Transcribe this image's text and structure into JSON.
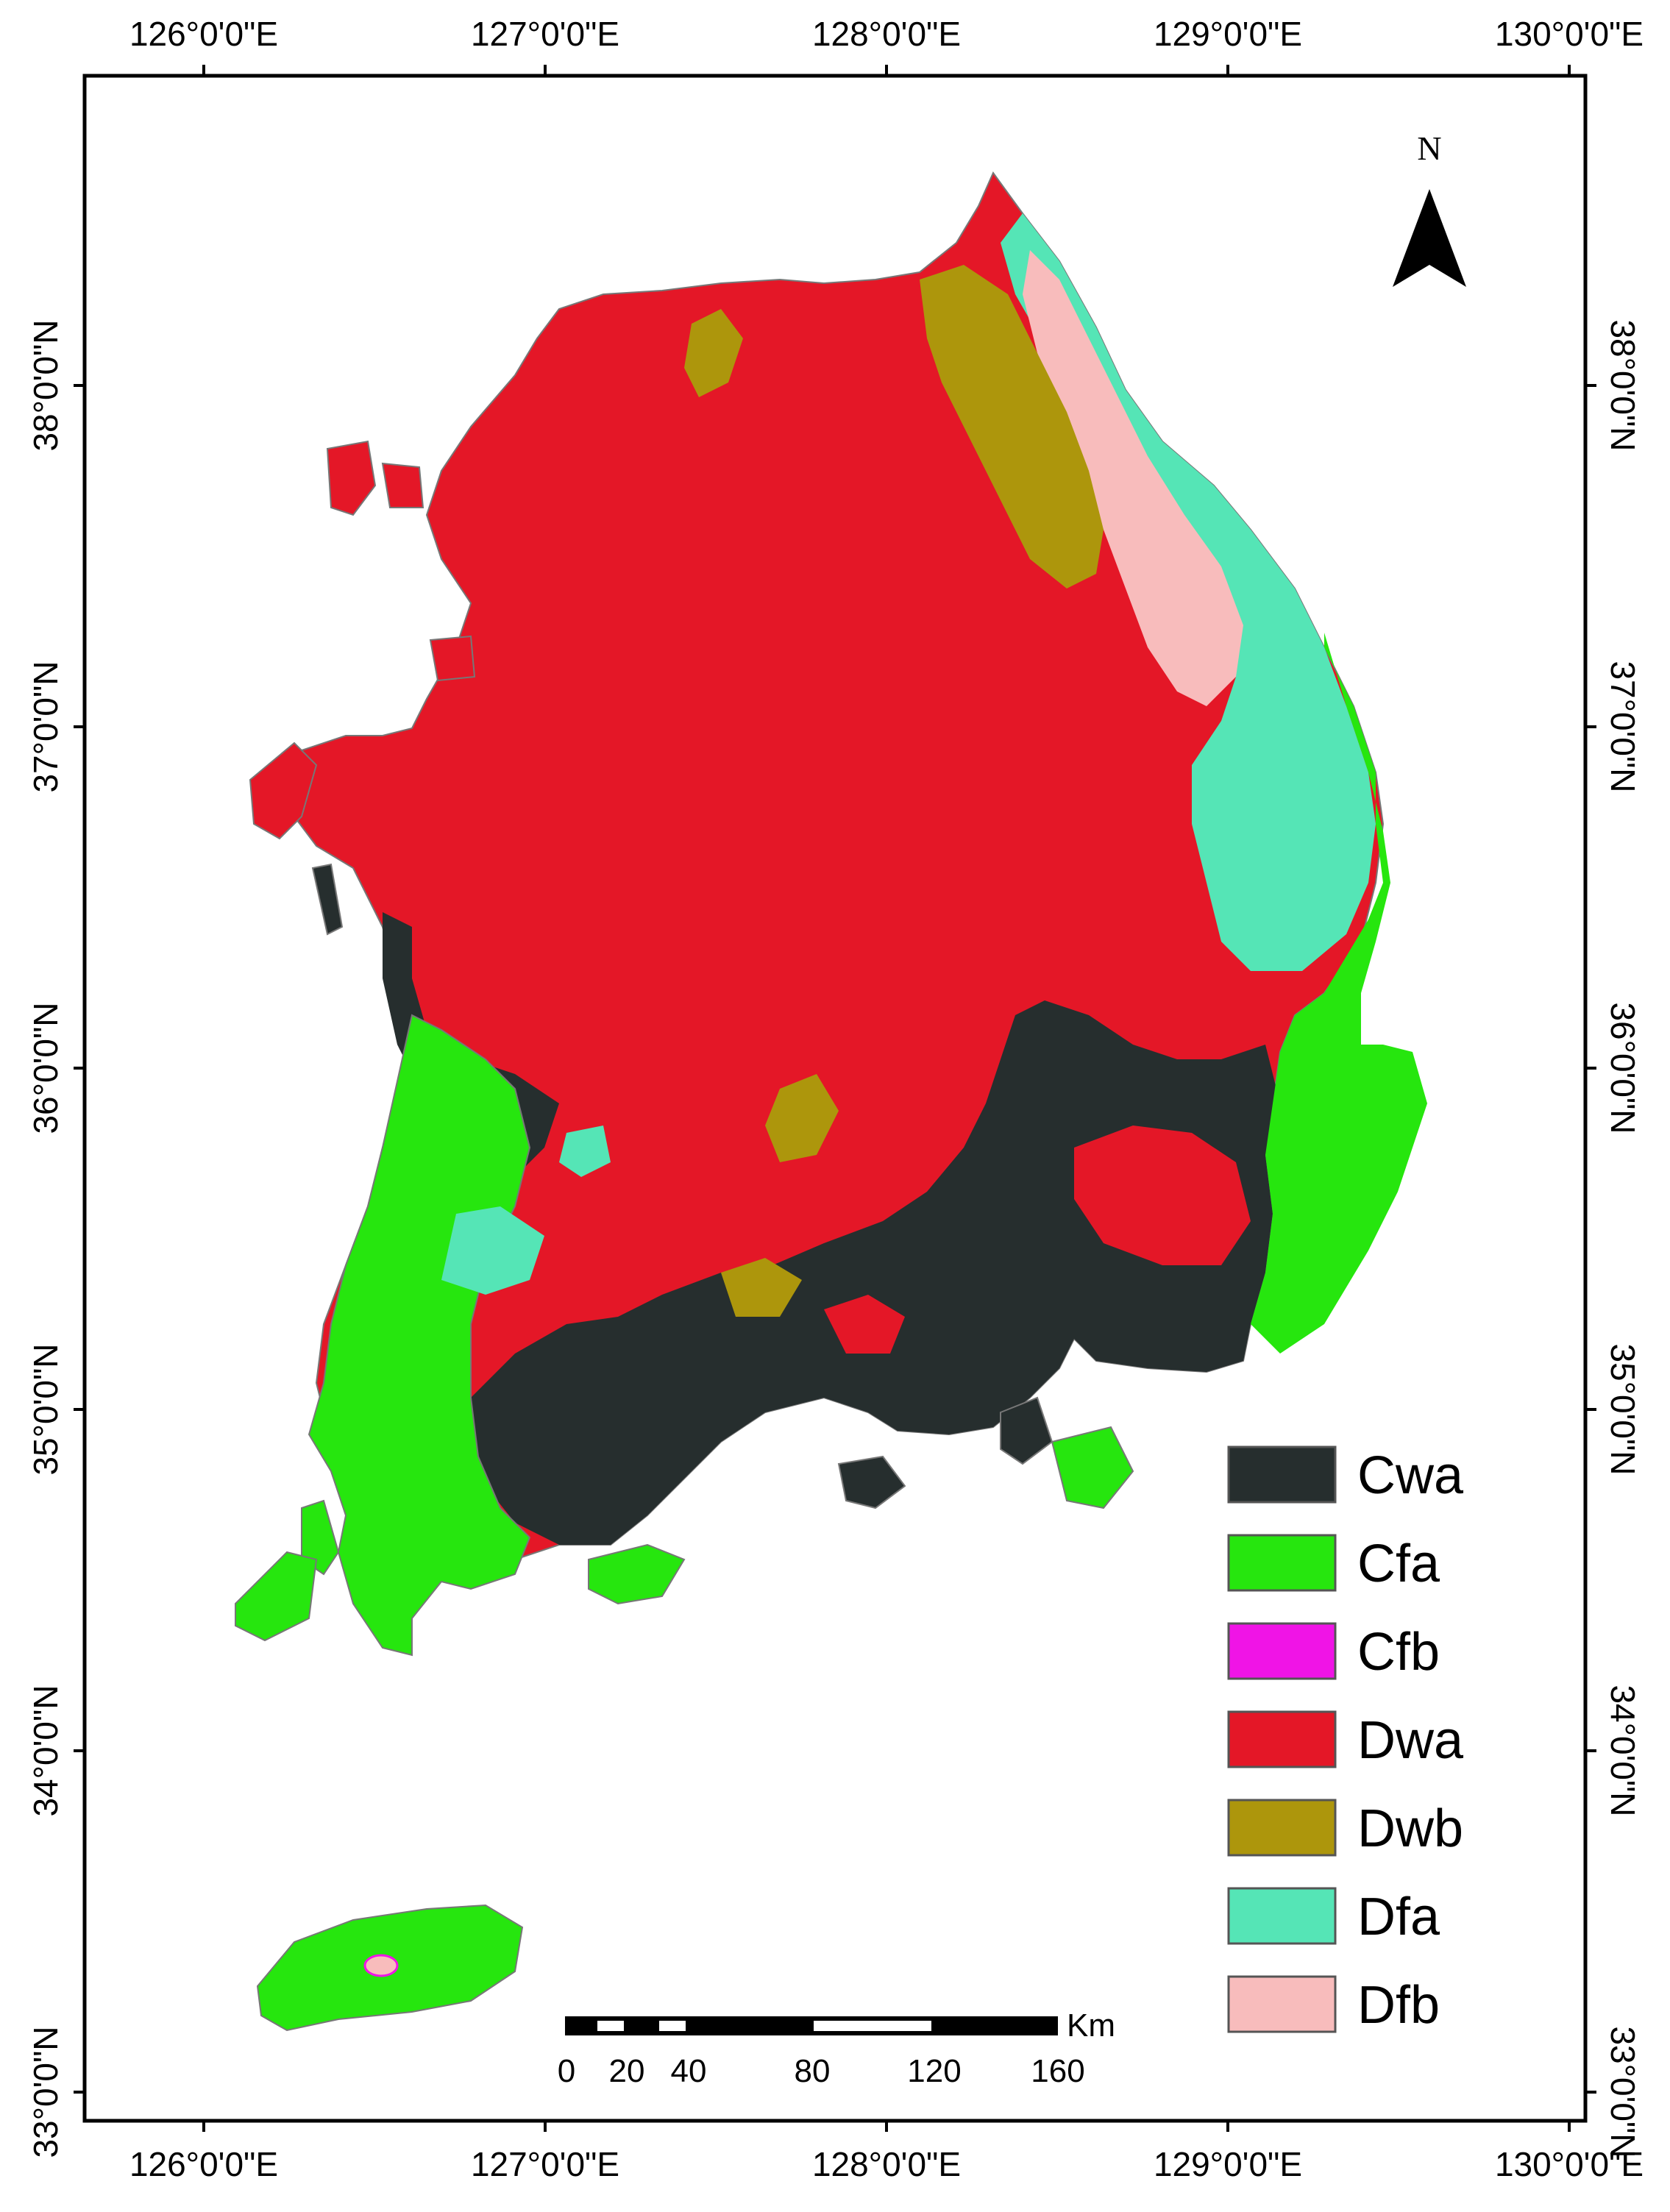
{
  "map": {
    "lon_ticks": [
      "126°0'0\"E",
      "127°0'0\"E",
      "128°0'0\"E",
      "129°0'0\"E",
      "130°0'0\"E"
    ],
    "lat_ticks": [
      "38°0'0\"N",
      "37°0'0\"N",
      "36°0'0\"N",
      "35°0'0\"N",
      "34°0'0\"N",
      "33°0'0\"N"
    ],
    "north_arrow": {
      "label": "N",
      "icon": "north-arrow-icon"
    },
    "scale_bar": {
      "unit": "Km",
      "labels": [
        "0",
        "20",
        "40",
        "80",
        "120",
        "160"
      ]
    },
    "legend": [
      {
        "code": "Cwa",
        "color": "#262e2e"
      },
      {
        "code": "Cfa",
        "color": "#26e60e"
      },
      {
        "code": "Cfb",
        "color": "#f014e6"
      },
      {
        "code": "Dwa",
        "color": "#e41727"
      },
      {
        "code": "Dwb",
        "color": "#ad960c"
      },
      {
        "code": "Dfa",
        "color": "#55e5b6"
      },
      {
        "code": "Dfb",
        "color": "#f8bcbc"
      }
    ]
  }
}
